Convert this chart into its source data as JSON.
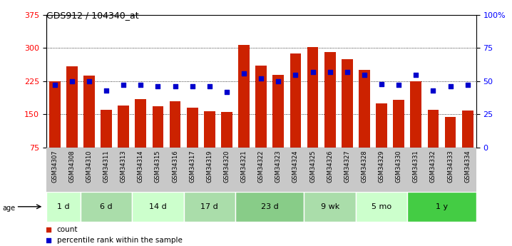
{
  "title": "GDS912 / 104340_at",
  "samples": [
    "GSM34307",
    "GSM34308",
    "GSM34310",
    "GSM34311",
    "GSM34313",
    "GSM34314",
    "GSM34315",
    "GSM34316",
    "GSM34317",
    "GSM34319",
    "GSM34320",
    "GSM34321",
    "GSM34322",
    "GSM34323",
    "GSM34324",
    "GSM34325",
    "GSM34326",
    "GSM34327",
    "GSM34328",
    "GSM34329",
    "GSM34330",
    "GSM34331",
    "GSM34332",
    "GSM34333",
    "GSM34334"
  ],
  "counts": [
    225,
    258,
    237,
    160,
    170,
    185,
    168,
    180,
    165,
    157,
    155,
    307,
    260,
    240,
    288,
    302,
    290,
    275,
    250,
    175,
    183,
    225,
    160,
    145,
    158
  ],
  "percentiles": [
    47,
    50,
    50,
    43,
    47,
    47,
    46,
    46,
    46,
    46,
    42,
    56,
    52,
    50,
    55,
    57,
    57,
    57,
    55,
    48,
    47,
    55,
    43,
    46,
    47
  ],
  "groups": [
    {
      "label": "1 d",
      "indices": [
        0,
        1
      ],
      "color": "#ccffcc"
    },
    {
      "label": "6 d",
      "indices": [
        2,
        3,
        4
      ],
      "color": "#aaddaa"
    },
    {
      "label": "14 d",
      "indices": [
        5,
        6,
        7
      ],
      "color": "#ccffcc"
    },
    {
      "label": "17 d",
      "indices": [
        8,
        9,
        10
      ],
      "color": "#aaddaa"
    },
    {
      "label": "23 d",
      "indices": [
        11,
        12,
        13,
        14
      ],
      "color": "#88cc88"
    },
    {
      "label": "9 wk",
      "indices": [
        15,
        16,
        17
      ],
      "color": "#aaddaa"
    },
    {
      "label": "5 mo",
      "indices": [
        18,
        19,
        20
      ],
      "color": "#ccffcc"
    },
    {
      "label": "1 y",
      "indices": [
        21,
        22,
        23,
        24
      ],
      "color": "#44cc44"
    }
  ],
  "ylim_left": [
    75,
    375
  ],
  "ylim_right": [
    0,
    100
  ],
  "yticks_left": [
    75,
    150,
    225,
    300,
    375
  ],
  "yticks_right": [
    0,
    25,
    50,
    75,
    100
  ],
  "bar_color": "#cc2200",
  "dot_color": "#0000cc",
  "legend_count_color": "#cc2200",
  "legend_pct_color": "#0000cc",
  "grid_lines": [
    150,
    225,
    300
  ]
}
